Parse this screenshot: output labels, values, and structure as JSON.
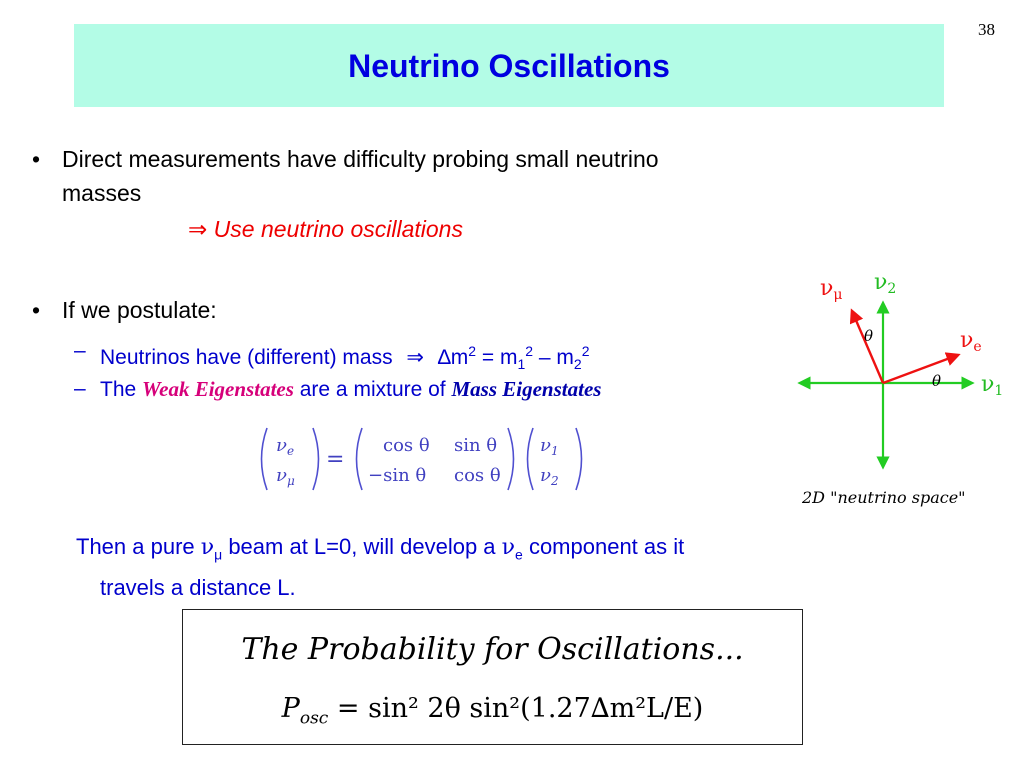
{
  "page_number": "38",
  "title": "Neutrino Oscillations",
  "bullet1": {
    "line1": "Direct measurements have difficulty probing small neutrino",
    "line2": "masses",
    "arrow": "⇒",
    "conclusion": "Use neutrino oscillations"
  },
  "bullet2": {
    "text": "If we postulate:",
    "sub1_text": "Neutrinos have (different) mass",
    "sub1_arrow": "⇒",
    "sub1_delta": "∆m",
    "sub1_sup1": "2",
    "sub1_eq": " = m",
    "sub1_sub1": "1",
    "sub1_sup2": "2",
    "sub1_minus": " – m",
    "sub1_sub2": "2",
    "sub1_sup3": "2",
    "sub2_the": "The",
    "sub2_weak": "Weak Eigenstates",
    "sub2_middle": "are a mixture of",
    "sub2_mass": "Mass Eigenstates"
  },
  "matrix": {
    "lhs_top": "ν",
    "lhs_top_sub": "e",
    "lhs_bot": "ν",
    "lhs_bot_sub": "μ",
    "equals": "=",
    "m11": "cos θ",
    "m12": "sin θ",
    "m21": "−sin θ",
    "m22": "cos θ",
    "rhs_top": "ν",
    "rhs_top_sub": "1",
    "rhs_bot": "ν",
    "rhs_bot_sub": "2"
  },
  "then_statement": {
    "p1": "Then a pure ",
    "nu1": "ν",
    "nu1_sub": "μ",
    "p2": " beam at L=0, will develop a ",
    "nu2": "ν",
    "nu2_sub": "e",
    "p3": " component as it",
    "line2": "travels a distance L."
  },
  "probability": {
    "heading": "The Probability for Oscillations...",
    "formula_P": "P",
    "formula_sub": "osc",
    "formula_rest": " = sin² 2θ sin²(1.27∆m²L/E)"
  },
  "diagram": {
    "nu_mu": "ν",
    "nu_mu_sub": "μ",
    "nu_2": "ν",
    "nu_2_sub": "2",
    "nu_e": "ν",
    "nu_e_sub": "e",
    "nu_1": "ν",
    "nu_1_sub": "1",
    "theta_top": "θ",
    "theta_right": "θ",
    "caption": "2D \"neutrino space\"",
    "axis_color": "#22cc22",
    "vector_color": "#ee1111"
  }
}
